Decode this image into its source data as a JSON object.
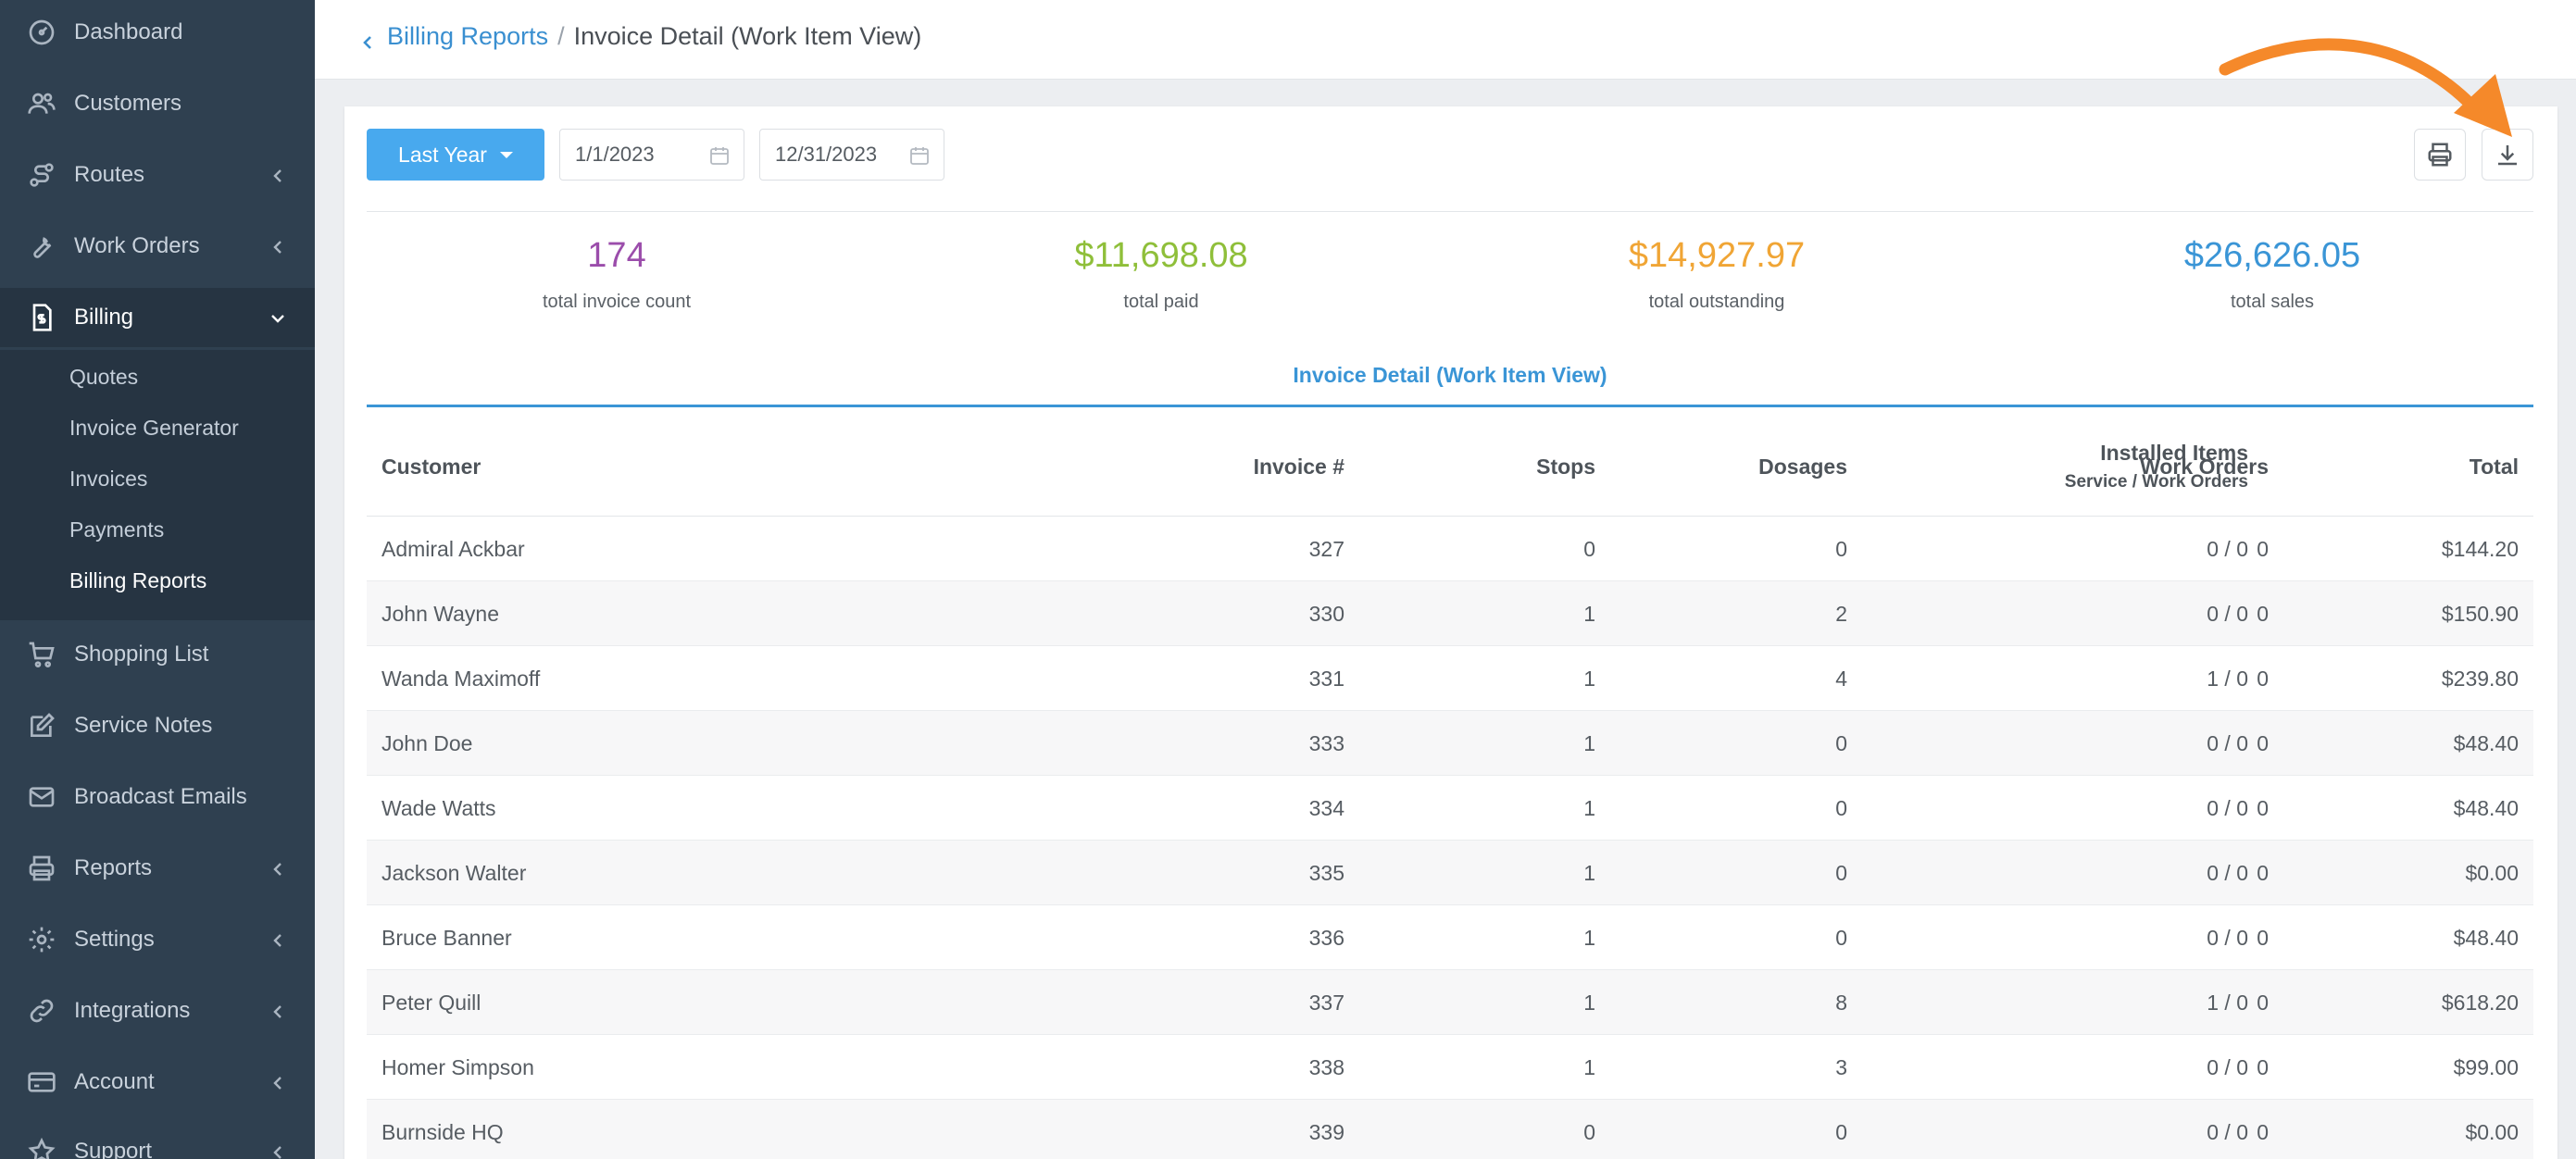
{
  "sidebar": {
    "items": [
      {
        "label": "Dashboard",
        "icon": "dashboard-icon"
      },
      {
        "label": "Customers",
        "icon": "users-icon"
      },
      {
        "label": "Routes",
        "icon": "route-icon"
      },
      {
        "label": "Work Orders",
        "icon": "wrench-icon"
      },
      {
        "label": "Billing",
        "icon": "invoice-icon"
      },
      {
        "label": "Shopping List",
        "icon": "cart-icon"
      },
      {
        "label": "Service Notes",
        "icon": "edit-icon"
      },
      {
        "label": "Broadcast Emails",
        "icon": "mail-icon"
      },
      {
        "label": "Reports",
        "icon": "printer-icon"
      },
      {
        "label": "Settings",
        "icon": "gear-icon"
      },
      {
        "label": "Integrations",
        "icon": "link-icon"
      },
      {
        "label": "Account",
        "icon": "card-icon"
      },
      {
        "label": "Support",
        "icon": "star-icon"
      }
    ],
    "billing_sub": [
      "Quotes",
      "Invoice Generator",
      "Invoices",
      "Payments",
      "Billing Reports"
    ]
  },
  "breadcrumb": {
    "parent": "Billing Reports",
    "separator": "/",
    "current": "Invoice Detail (Work Item View)"
  },
  "filters": {
    "range_label": "Last Year",
    "start_date": "1/1/2023",
    "end_date": "12/31/2023"
  },
  "stats": [
    {
      "value": "174",
      "label": "total invoice count",
      "color": "#9b4dab"
    },
    {
      "value": "$11,698.08",
      "label": "total paid",
      "color": "#8fbf3a"
    },
    {
      "value": "$14,927.97",
      "label": "total outstanding",
      "color": "#f0a535"
    },
    {
      "value": "$26,626.05",
      "label": "total sales",
      "color": "#3a95d6"
    }
  ],
  "section_title": "Invoice Detail (Work Item View)",
  "table": {
    "headers": {
      "customer": "Customer",
      "invoice": "Invoice #",
      "stops": "Stops",
      "dosages": "Dosages",
      "installed": "Installed Items",
      "installed_sub": "Service / Work Orders",
      "work_orders": "Work Orders",
      "total": "Total"
    },
    "rows": [
      {
        "customer": "Admiral Ackbar",
        "invoice": "327",
        "stops": "0",
        "dosages": "0",
        "installed": "0 / 0",
        "work_orders": "0",
        "total": "$144.20"
      },
      {
        "customer": "John Wayne",
        "invoice": "330",
        "stops": "1",
        "dosages": "2",
        "installed": "0 / 0",
        "work_orders": "0",
        "total": "$150.90"
      },
      {
        "customer": "Wanda Maximoff",
        "invoice": "331",
        "stops": "1",
        "dosages": "4",
        "installed": "1 / 0",
        "work_orders": "0",
        "total": "$239.80"
      },
      {
        "customer": "John Doe",
        "invoice": "333",
        "stops": "1",
        "dosages": "0",
        "installed": "0 / 0",
        "work_orders": "0",
        "total": "$48.40"
      },
      {
        "customer": "Wade Watts",
        "invoice": "334",
        "stops": "1",
        "dosages": "0",
        "installed": "0 / 0",
        "work_orders": "0",
        "total": "$48.40"
      },
      {
        "customer": "Jackson Walter",
        "invoice": "335",
        "stops": "1",
        "dosages": "0",
        "installed": "0 / 0",
        "work_orders": "0",
        "total": "$0.00"
      },
      {
        "customer": "Bruce Banner",
        "invoice": "336",
        "stops": "1",
        "dosages": "0",
        "installed": "0 / 0",
        "work_orders": "0",
        "total": "$48.40"
      },
      {
        "customer": "Peter Quill",
        "invoice": "337",
        "stops": "1",
        "dosages": "8",
        "installed": "1 / 0",
        "work_orders": "0",
        "total": "$618.20"
      },
      {
        "customer": "Homer Simpson",
        "invoice": "338",
        "stops": "1",
        "dosages": "3",
        "installed": "0 / 0",
        "work_orders": "0",
        "total": "$99.00"
      },
      {
        "customer": "Burnside HQ",
        "invoice": "339",
        "stops": "0",
        "dosages": "0",
        "installed": "0 / 0",
        "work_orders": "0",
        "total": "$0.00"
      }
    ]
  },
  "colors": {
    "sidebar_bg": "#2f4050",
    "accent": "#3a95d6",
    "button": "#48a9ee",
    "annotation_arrow": "#f5892a"
  }
}
